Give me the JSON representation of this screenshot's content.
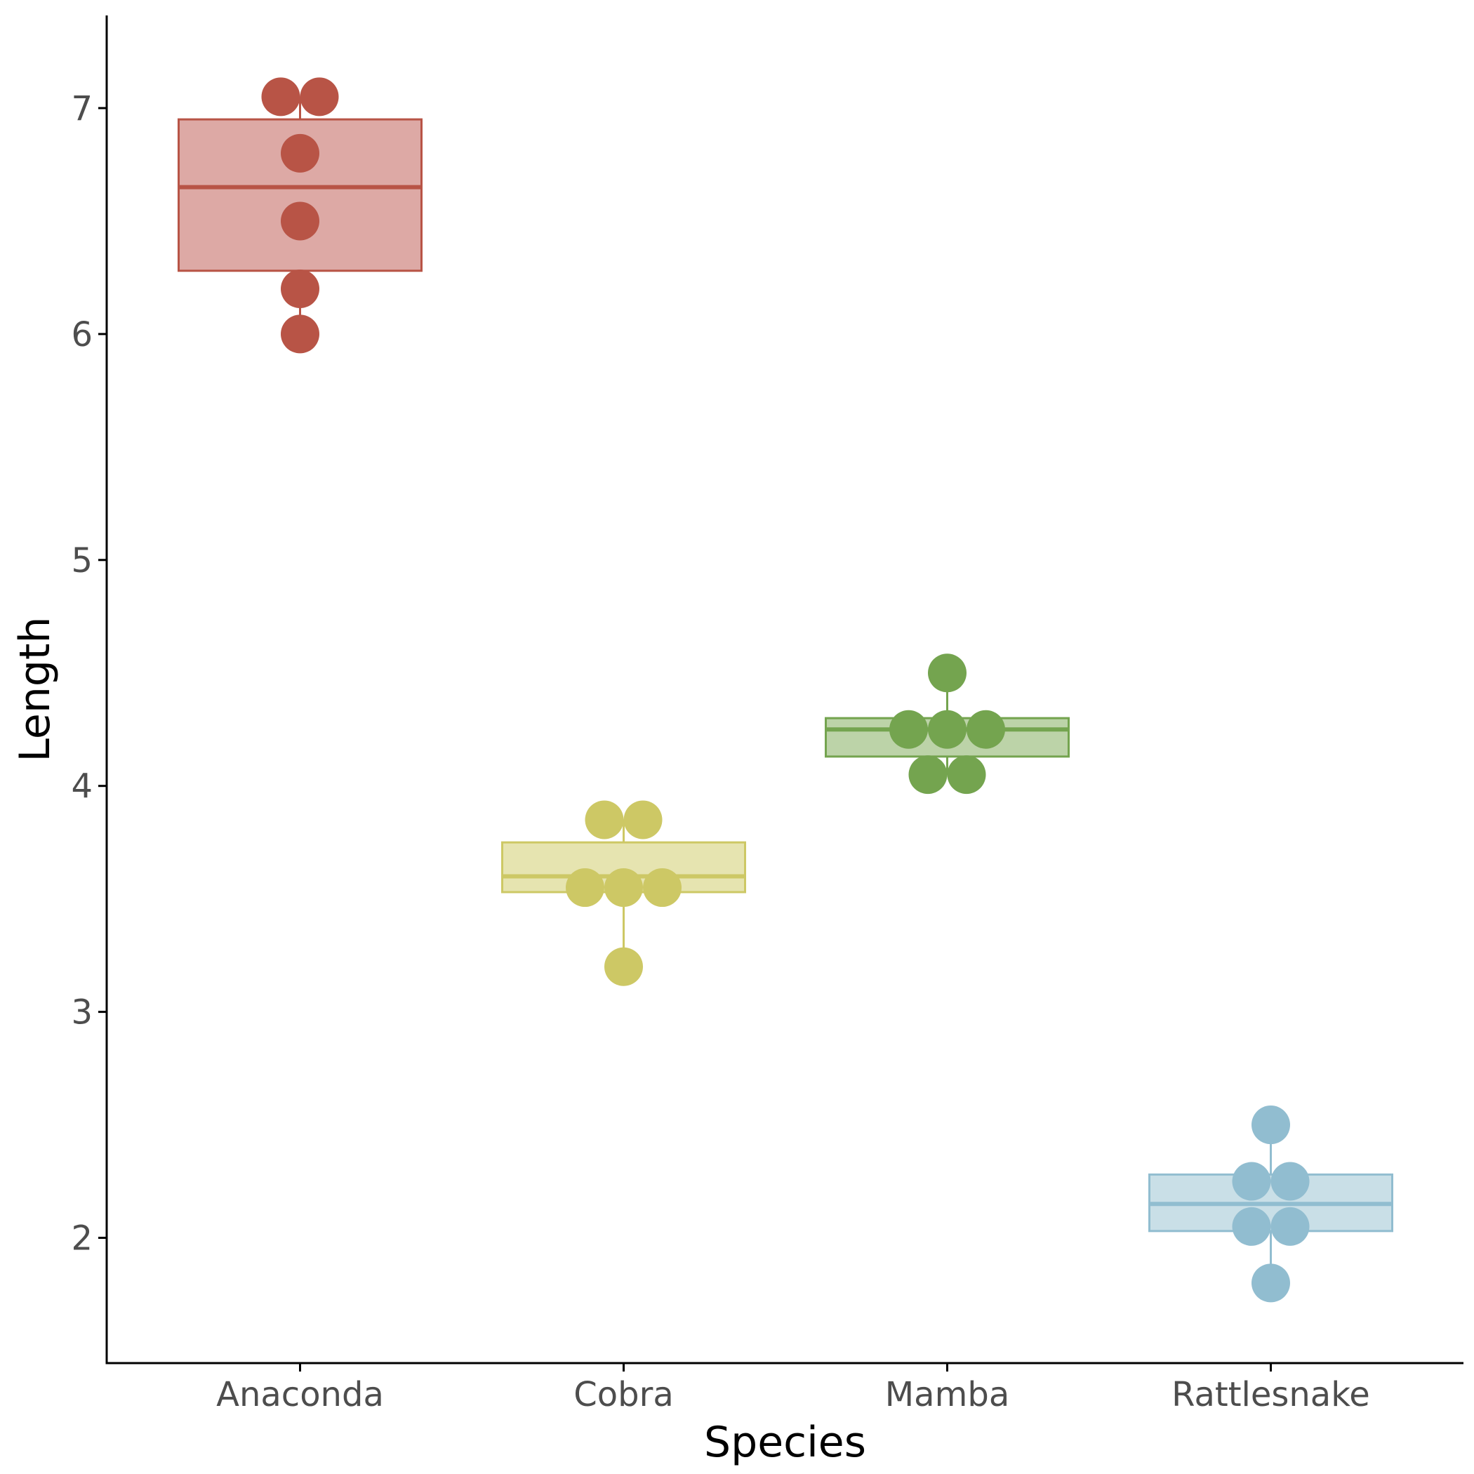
{
  "chart_data": {
    "type": "boxplot",
    "xlabel": "Species",
    "ylabel": "Length",
    "categories": [
      "Anaconda",
      "Cobra",
      "Mamba",
      "Rattlesnake"
    ],
    "ylim": [
      1.45,
      7.4
    ],
    "yticks": [
      2,
      3,
      4,
      5,
      6,
      7
    ],
    "grid": false,
    "legend": "none",
    "series": [
      {
        "category": "Anaconda",
        "color": "#b85446",
        "fill": "#dda9a5",
        "box": {
          "min": 6.0,
          "q1": 6.28,
          "median": 6.65,
          "q3": 6.95,
          "max": 7.05
        },
        "points": [
          7.05,
          7.05,
          6.8,
          6.5,
          6.2,
          6.0
        ]
      },
      {
        "category": "Cobra",
        "color": "#cdc865",
        "fill": "#e6e4b0",
        "box": {
          "min": 3.2,
          "q1": 3.53,
          "median": 3.6,
          "q3": 3.75,
          "max": 3.85
        },
        "points": [
          3.85,
          3.85,
          3.55,
          3.55,
          3.55,
          3.2
        ]
      },
      {
        "category": "Mamba",
        "color": "#74a44f",
        "fill": "#bcd3a8",
        "box": {
          "min": 4.05,
          "q1": 4.13,
          "median": 4.25,
          "q3": 4.3,
          "max": 4.5
        },
        "points": [
          4.5,
          4.25,
          4.25,
          4.25,
          4.05,
          4.05
        ]
      },
      {
        "category": "Rattlesnake",
        "color": "#91bdd0",
        "fill": "#c9dfe7",
        "box": {
          "min": 1.8,
          "q1": 2.03,
          "median": 2.15,
          "q3": 2.28,
          "max": 2.5
        },
        "points": [
          2.5,
          2.25,
          2.25,
          2.05,
          2.05,
          1.8
        ]
      }
    ]
  }
}
